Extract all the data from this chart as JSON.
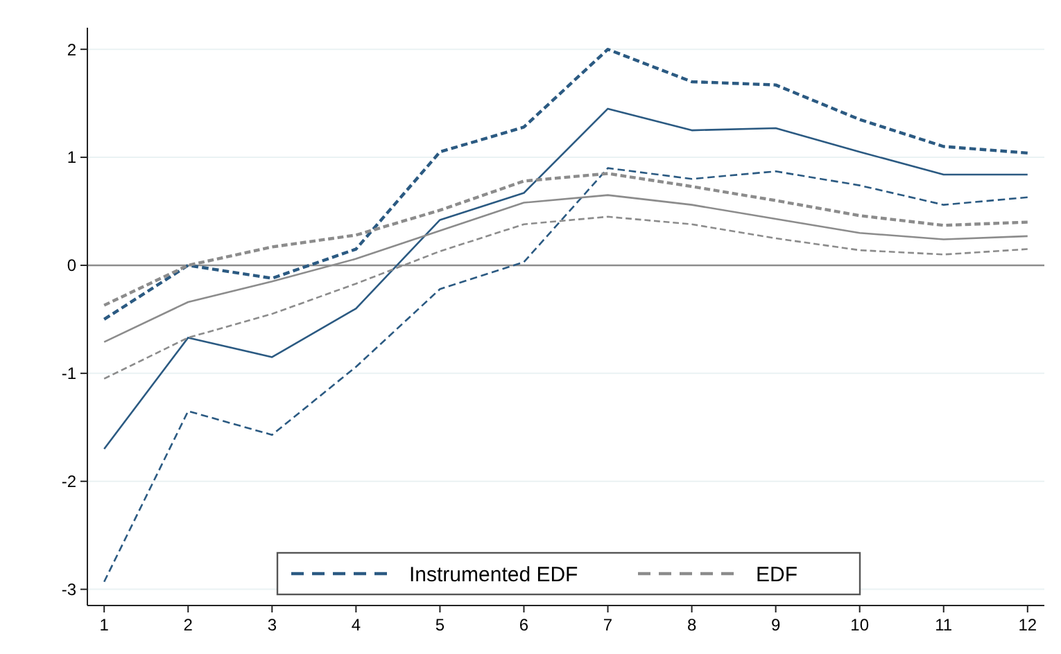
{
  "chart_data": {
    "type": "line",
    "x": [
      1,
      2,
      3,
      4,
      5,
      6,
      7,
      8,
      9,
      10,
      11,
      12
    ],
    "xlim": [
      0.8,
      12.2
    ],
    "xticks": [
      1,
      2,
      3,
      4,
      5,
      6,
      7,
      8,
      9,
      10,
      11,
      12
    ],
    "ylim": [
      -3.15,
      2.2
    ],
    "yticks": [
      -3,
      -2,
      -1,
      0,
      1,
      2
    ],
    "grid": "y",
    "legend": "bottom",
    "ref_lines": [
      {
        "axis": "y",
        "value": 0,
        "color": "#8c8c8c"
      }
    ],
    "series": [
      {
        "name": "Instrumented EDF",
        "color": "#2b5a82",
        "line_style": "dashed",
        "values": [
          -0.5,
          0.0,
          -0.12,
          0.15,
          1.05,
          1.28,
          2.0,
          1.7,
          1.67,
          1.35,
          1.1,
          1.04
        ]
      },
      {
        "color": "#2b5a82",
        "line_style": "solid",
        "values": [
          -1.7,
          -0.67,
          -0.85,
          -0.4,
          0.42,
          0.67,
          1.45,
          1.25,
          1.27,
          1.05,
          0.84,
          0.84
        ]
      },
      {
        "color": "#2b5a82",
        "line_style": "dashed",
        "values": [
          -2.93,
          -1.35,
          -1.57,
          -0.94,
          -0.22,
          0.03,
          0.9,
          0.8,
          0.87,
          0.74,
          0.56,
          0.63
        ]
      },
      {
        "name": "EDF",
        "color": "#8c8c8c",
        "line_style": "dashed",
        "values": [
          -0.37,
          0.0,
          0.17,
          0.28,
          0.51,
          0.78,
          0.85,
          0.73,
          0.6,
          0.46,
          0.37,
          0.4
        ]
      },
      {
        "color": "#8c8c8c",
        "line_style": "solid",
        "values": [
          -0.71,
          -0.34,
          -0.15,
          0.06,
          0.32,
          0.58,
          0.65,
          0.56,
          0.43,
          0.3,
          0.24,
          0.27
        ]
      },
      {
        "color": "#8c8c8c",
        "line_style": "dashed",
        "values": [
          -1.05,
          -0.67,
          -0.45,
          -0.17,
          0.13,
          0.38,
          0.45,
          0.38,
          0.25,
          0.14,
          0.1,
          0.15
        ]
      }
    ]
  }
}
